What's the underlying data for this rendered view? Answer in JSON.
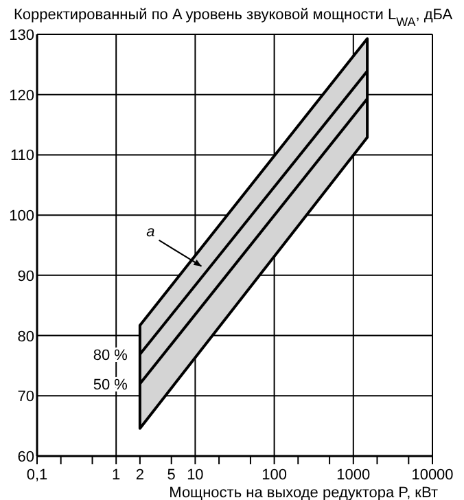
{
  "chart_data": {
    "type": "line",
    "ylabel": "Корректированный по A уровень звуковой мощности L$_{WA}$, дБА",
    "xlabel": "Мощность на выходе редуктора P, кВт",
    "log": "x",
    "grid": true,
    "x": [
      2,
      1500
    ],
    "xlim": [
      0.1,
      10000
    ],
    "ylim": [
      60,
      130
    ],
    "xticks": [
      {
        "value": 0.1,
        "label": "0,1"
      },
      {
        "value": 0.2,
        "label": null
      },
      {
        "value": 0.5,
        "label": null
      },
      1,
      2,
      5,
      10,
      {
        "value": 20,
        "label": null
      },
      {
        "value": 50,
        "label": null
      },
      100,
      {
        "value": 200,
        "label": null
      },
      {
        "value": 500,
        "label": null
      },
      1000,
      {
        "value": 2000,
        "label": null
      },
      {
        "value": 5000,
        "label": null
      },
      10000
    ],
    "yticks": [
      60,
      70,
      80,
      90,
      100,
      110,
      120,
      130
    ],
    "series": [
      {
        "name": "50 %",
        "color": "#000000",
        "values": [
          72,
          119.3
        ],
        "lower": [
          64.6,
          112.9
        ],
        "upper": [
          81.7,
          129.3
        ]
      },
      {
        "name": "80 %",
        "color": "#000000",
        "values": [
          76.9,
          123.9
        ]
      }
    ],
    "annotations": [
      {
        "text": "a",
        "x": 12,
        "y": 91.5
      }
    ]
  }
}
